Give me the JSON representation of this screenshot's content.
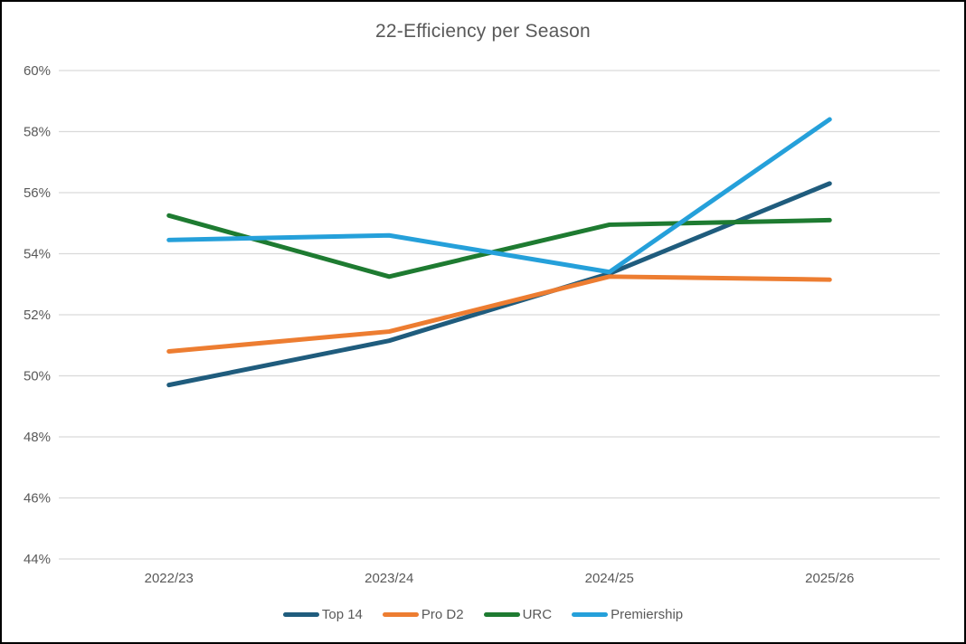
{
  "title": "22-Efficiency per Season",
  "colors": {
    "background": "#FFFFFF",
    "frame_border": "#000000",
    "gridline": "#D9D9D9",
    "text": "#595959",
    "series_top14": "#1F5C7D",
    "series_prod2": "#ED7D31",
    "series_urc": "#1E7B31",
    "series_premiership": "#25A0DA"
  },
  "chart_data": {
    "type": "line",
    "title": "22-Efficiency per Season",
    "xlabel": "",
    "ylabel": "",
    "categories": [
      "2022/23",
      "2023/24",
      "2024/25",
      "2025/26"
    ],
    "series": [
      {
        "name": "Top 14",
        "color": "#1F5C7D",
        "values": [
          49.7,
          51.15,
          53.35,
          56.3
        ]
      },
      {
        "name": "Pro D2",
        "color": "#ED7D31",
        "values": [
          50.8,
          51.45,
          53.25,
          53.15
        ]
      },
      {
        "name": "URC",
        "color": "#1E7B31",
        "values": [
          55.25,
          53.25,
          54.95,
          55.1
        ]
      },
      {
        "name": "Premiership",
        "color": "#25A0DA",
        "values": [
          54.45,
          54.6,
          53.4,
          58.4
        ]
      }
    ],
    "ylim": [
      44,
      60
    ],
    "ytick_step": 2,
    "yticks": [
      {
        "value": 60,
        "label": "60%"
      },
      {
        "value": 58,
        "label": "58%"
      },
      {
        "value": 56,
        "label": "56%"
      },
      {
        "value": 54,
        "label": "54%"
      },
      {
        "value": 52,
        "label": "52%"
      },
      {
        "value": 50,
        "label": "50%"
      },
      {
        "value": 48,
        "label": "48%"
      },
      {
        "value": 46,
        "label": "46%"
      },
      {
        "value": 44,
        "label": "44%"
      }
    ],
    "grid": true,
    "legend_position": "bottom",
    "legend_entries": [
      "Top 14",
      "Pro D2",
      "URC",
      "Premiership"
    ]
  }
}
